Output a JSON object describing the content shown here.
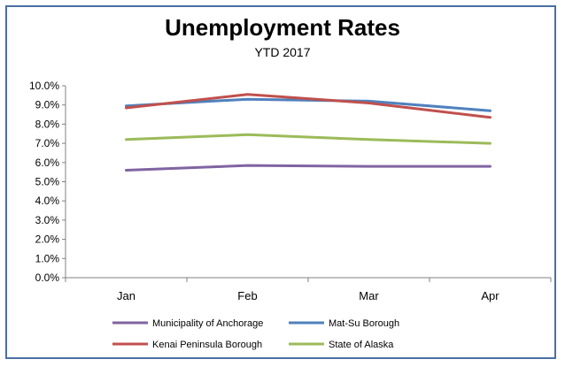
{
  "chart_data": {
    "type": "line",
    "title": "Unemployment Rates",
    "subtitle": "YTD 2017",
    "categories": [
      "Jan",
      "Feb",
      "Mar",
      "Apr"
    ],
    "y_ticks": [
      "0.0%",
      "1.0%",
      "2.0%",
      "3.0%",
      "4.0%",
      "5.0%",
      "6.0%",
      "7.0%",
      "8.0%",
      "9.0%",
      "10.0%"
    ],
    "ylim": [
      0,
      10
    ],
    "grid": false,
    "legend_position": "bottom",
    "series": [
      {
        "name": "Municipality of Anchorage",
        "color": "#8064a2",
        "values": [
          5.6,
          5.85,
          5.8,
          5.8
        ]
      },
      {
        "name": "Mat-Su Borough",
        "color": "#4f81bd",
        "values": [
          8.95,
          9.3,
          9.2,
          8.7
        ]
      },
      {
        "name": "Kenai Peninsula Borough",
        "color": "#c0504d",
        "values": [
          8.85,
          9.55,
          9.1,
          8.35
        ]
      },
      {
        "name": "State of Alaska",
        "color": "#9bbb59",
        "values": [
          7.2,
          7.45,
          7.2,
          7.0
        ]
      }
    ]
  }
}
